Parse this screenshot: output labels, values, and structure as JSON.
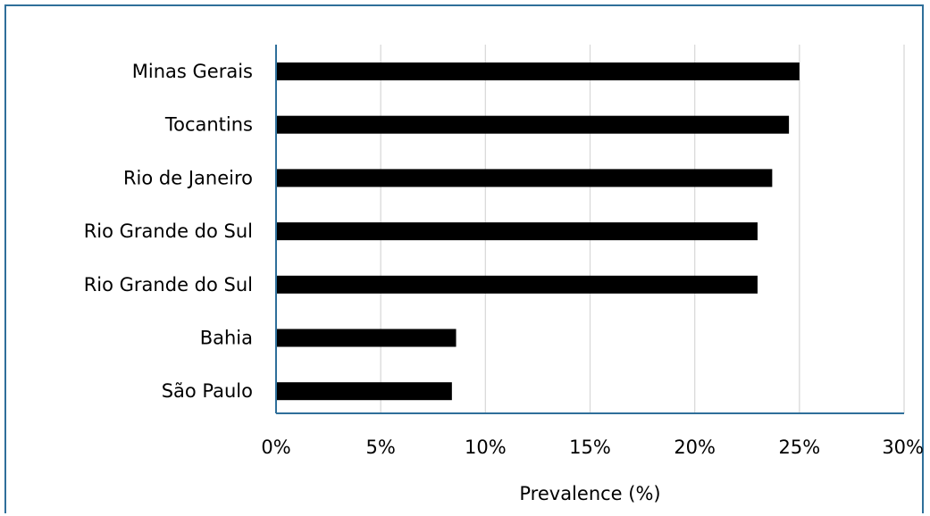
{
  "chart_data": {
    "type": "bar",
    "orientation": "horizontal",
    "title": "",
    "xlabel": "Prevalence (%)",
    "ylabel": "",
    "categories": [
      "Minas Gerais",
      "Tocantins",
      "Rio de Janeiro",
      "Rio Grande do Sul",
      "Rio Grande do Sul",
      "Bahia",
      "São Paulo"
    ],
    "values": [
      25.0,
      24.5,
      23.7,
      23.0,
      23.0,
      8.6,
      8.4
    ],
    "xlim": [
      0,
      30
    ],
    "xticks": [
      "0%",
      "5%",
      "10%",
      "15%",
      "20%",
      "25%",
      "30%"
    ],
    "grid": "vertical",
    "legend": "none",
    "colors": {
      "bar": "#000000",
      "grid": "#d9d9d9",
      "axis": "#2f6f9a",
      "frame": "#2f6f9a"
    }
  }
}
